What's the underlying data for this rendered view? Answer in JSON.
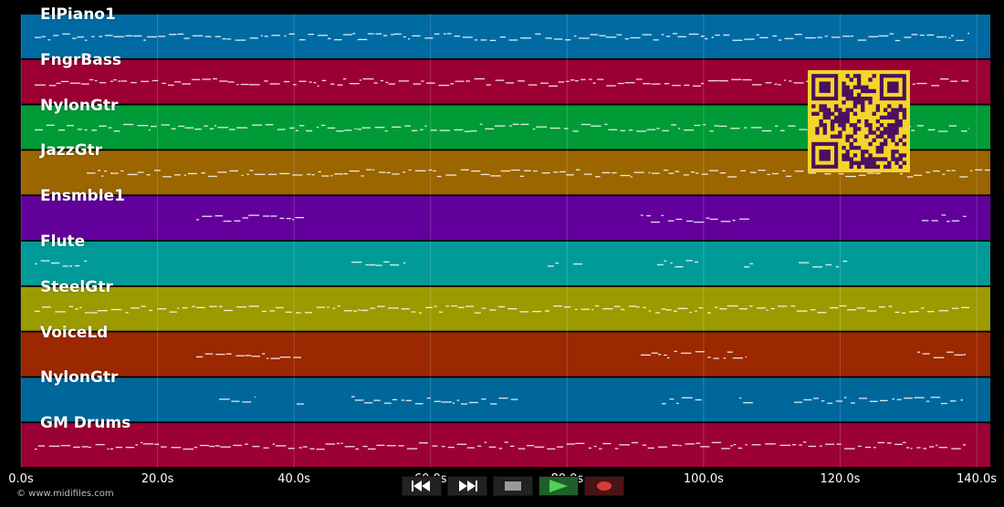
{
  "tracks": [
    {
      "name": "ElPiano1",
      "color": "#006aa3"
    },
    {
      "name": "FngrBass",
      "color": "#9b0033"
    },
    {
      "name": "NylonGtr",
      "color": "#009b36"
    },
    {
      "name": "JazzGtr",
      "color": "#9b6500"
    },
    {
      "name": "Ensmble1",
      "color": "#62009b"
    },
    {
      "name": "Flute",
      "color": "#009b99"
    },
    {
      "name": "SteelGtr",
      "color": "#9b9b00"
    },
    {
      "name": "VoiceLd",
      "color": "#9b2800"
    },
    {
      "name": "NylonGtr",
      "color": "#00679b"
    },
    {
      "name": "GM Drums",
      "color": "#9b0036"
    }
  ],
  "timeline": {
    "max_seconds": 142,
    "ticks": [
      "0.0s",
      "20.0s",
      "40.0s",
      "60.0s",
      "80.0s",
      "100.0s",
      "120.0s",
      "140.0s"
    ],
    "tick_values": [
      0,
      20,
      40,
      60,
      80,
      100,
      120,
      140
    ]
  },
  "footer": {
    "copyright": "© www.midifiles.com"
  },
  "transport": {
    "buttons": [
      "rewind-icon",
      "fast-forward-icon",
      "stop-icon",
      "play-icon",
      "record-icon"
    ],
    "accent_play": "#4fd15a",
    "accent_record": "#d93a3a"
  },
  "qr": {
    "foreground": "#4a1060",
    "background": "#f5d52a"
  },
  "note_color": "#ffffff"
}
